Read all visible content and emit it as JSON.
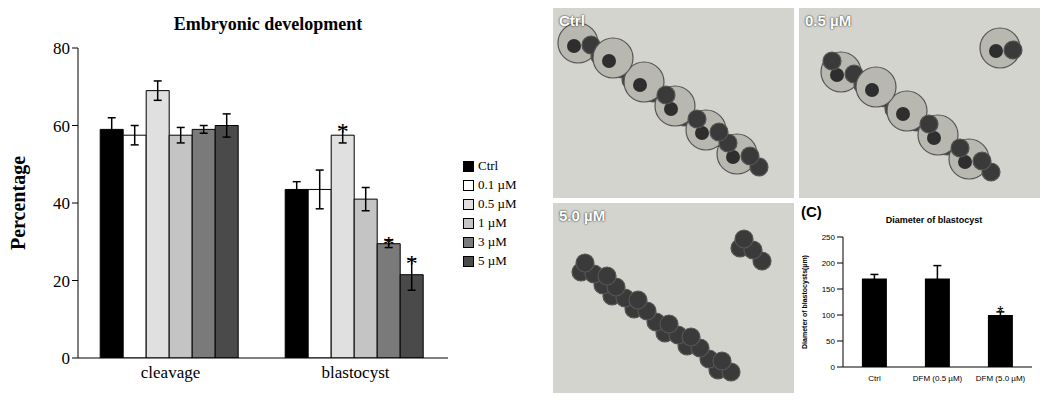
{
  "chart_data": [
    {
      "type": "bar",
      "title": "Embryonic development",
      "categories": [
        "cleavage",
        "blastocyst"
      ],
      "series": [
        {
          "name": "Ctrl",
          "color": "#000000",
          "values": [
            59,
            43.5
          ],
          "errors": [
            3,
            2
          ]
        },
        {
          "name": "0.1 µM",
          "color": "#ffffff",
          "values": [
            57.5,
            43.5
          ],
          "errors": [
            2.5,
            5
          ]
        },
        {
          "name": "0.5 µM",
          "color": "#e0e0e0",
          "values": [
            69,
            57.5
          ],
          "errors": [
            2.5,
            2
          ]
        },
        {
          "name": "1 µM",
          "color": "#c4c4c4",
          "values": [
            57.5,
            41
          ],
          "errors": [
            2,
            3
          ]
        },
        {
          "name": "3 µM",
          "color": "#7a7a7a",
          "values": [
            59,
            29.5
          ],
          "errors": [
            1,
            1
          ]
        },
        {
          "name": "5 µM",
          "color": "#4a4a4a",
          "values": [
            60,
            21.5
          ],
          "errors": [
            3,
            4
          ]
        }
      ],
      "ylabel": "Percentage",
      "ylim": [
        0,
        80
      ],
      "yticks": [
        0,
        20,
        40,
        60,
        80
      ],
      "grid": false,
      "legend": "right",
      "annotations": [
        {
          "category": "blastocyst",
          "series": "0.5 µM",
          "text": "*"
        },
        {
          "category": "blastocyst",
          "series": "3 µM",
          "text": "*"
        },
        {
          "category": "blastocyst",
          "series": "5 µM",
          "text": "*"
        }
      ]
    },
    {
      "type": "bar",
      "label": "(C)",
      "title": "Diameter of blastocyst",
      "categories": [
        "Ctrl",
        "DFM (0.5 µM)",
        "DFM (5.0 µM)"
      ],
      "values": [
        170,
        170,
        100
      ],
      "errors": [
        8,
        25,
        6
      ],
      "color": "#000000",
      "ylabel": "Diameter of blastocysts(µm)",
      "ylim": [
        0,
        250
      ],
      "yticks": [
        0,
        50,
        100,
        150,
        200,
        250
      ],
      "grid": false,
      "annotations": [
        {
          "category": "DFM (5.0 µM)",
          "text": "*"
        }
      ]
    }
  ],
  "images": [
    {
      "label": "Ctrl"
    },
    {
      "label": "0.5 µM"
    },
    {
      "label": "5.0 µM"
    }
  ]
}
